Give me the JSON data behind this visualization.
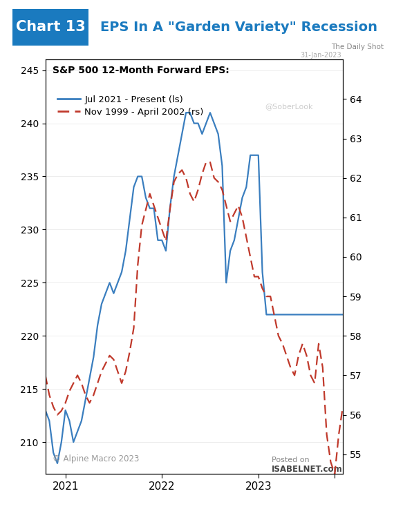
{
  "title_box_text": "Chart 13",
  "title_box_color": "#1a7abf",
  "title_text": "EPS In A \"Garden Variety\" Recession",
  "title_color": "#1a7abf",
  "subtitle_daily_shot": "The Daily Shot",
  "subtitle_date": "31-Jan-2023",
  "watermark": "@SoberLook",
  "legend_title": "S&P 500 12-Month Forward EPS:",
  "legend_line1": "Jul 2021 - Present (ls)",
  "legend_line2": "Nov 1999 - April 2002 (rs)",
  "copyright": "© Alpine Macro 2023",
  "background_color": "#ffffff",
  "blue_x": [
    0,
    1,
    2,
    3,
    4,
    5,
    6,
    7,
    8,
    9,
    10,
    11,
    12,
    13,
    14,
    15,
    16,
    17,
    18,
    19,
    20,
    21,
    22,
    23,
    24,
    25,
    26,
    27,
    28,
    29,
    30,
    31,
    32,
    33,
    34,
    35,
    36,
    37,
    38,
    39,
    40,
    41,
    42,
    43,
    44,
    45,
    46,
    47,
    48,
    49,
    50,
    51,
    52,
    53,
    54,
    55,
    56,
    57,
    58,
    59,
    60,
    61,
    62,
    63,
    64,
    65,
    66,
    67,
    68,
    69,
    70,
    71,
    72,
    73,
    74
  ],
  "blue_y": [
    213,
    212,
    209,
    208,
    210,
    213,
    212,
    210,
    211,
    212,
    214,
    216,
    218,
    221,
    223,
    224,
    225,
    224,
    225,
    226,
    228,
    231,
    234,
    235,
    235,
    233,
    232,
    232,
    229,
    229,
    228,
    232,
    235,
    237,
    239,
    241,
    241,
    240,
    240,
    239,
    240,
    241,
    240,
    239,
    236,
    225,
    228,
    229,
    231,
    233,
    234,
    237,
    237,
    237,
    226,
    222,
    222,
    222,
    222,
    222,
    222,
    222,
    222,
    222,
    222,
    222,
    222,
    222,
    222,
    222,
    222,
    222,
    222,
    222,
    222
  ],
  "blue_color": "#3a7ebf",
  "red_x": [
    0,
    1,
    2,
    3,
    4,
    5,
    6,
    7,
    8,
    9,
    10,
    11,
    12,
    13,
    14,
    15,
    16,
    17,
    18,
    19,
    20,
    21,
    22,
    23,
    24,
    25,
    26,
    27,
    28,
    29,
    30,
    31,
    32,
    33,
    34,
    35,
    36,
    37,
    38,
    39,
    40,
    41,
    42,
    43,
    44,
    45,
    46,
    47,
    48,
    49,
    50,
    51,
    52,
    53,
    54,
    55,
    56,
    57,
    58,
    59,
    60,
    61,
    62,
    63,
    64,
    65,
    66,
    67,
    68,
    69,
    70,
    71,
    72,
    73,
    74
  ],
  "red_y": [
    57.0,
    56.5,
    56.2,
    56.0,
    56.1,
    56.3,
    56.6,
    56.8,
    57.0,
    56.8,
    56.5,
    56.3,
    56.5,
    56.8,
    57.1,
    57.3,
    57.5,
    57.4,
    57.1,
    56.8,
    57.1,
    57.6,
    58.2,
    59.8,
    60.8,
    61.2,
    61.6,
    61.3,
    61.0,
    60.7,
    60.4,
    61.2,
    61.9,
    62.1,
    62.2,
    62.0,
    61.6,
    61.4,
    61.7,
    62.1,
    62.4,
    62.4,
    62.0,
    61.9,
    61.7,
    61.3,
    60.9,
    61.1,
    61.3,
    61.0,
    60.5,
    60.0,
    59.5,
    59.5,
    59.2,
    59.0,
    59.0,
    58.5,
    58.0,
    57.8,
    57.5,
    57.2,
    57.0,
    57.5,
    57.8,
    57.5,
    57.0,
    56.8,
    57.8,
    57.2,
    55.5,
    54.8,
    54.5,
    55.5,
    56.2
  ],
  "red_color": "#c0392b",
  "xlim": [
    0,
    74
  ],
  "ylim_left": [
    207,
    246
  ],
  "ylim_right": [
    54.5,
    65.0
  ],
  "yticks_left": [
    210,
    215,
    220,
    225,
    230,
    235,
    240,
    245
  ],
  "yticks_right": [
    55,
    56,
    57,
    58,
    59,
    60,
    61,
    62,
    63,
    64
  ],
  "xtick_positions": [
    5,
    29,
    53,
    72
  ],
  "xtick_labels": [
    "2021",
    "2022",
    "2023",
    ""
  ],
  "figsize": [
    5.7,
    7.5
  ],
  "dpi": 100
}
